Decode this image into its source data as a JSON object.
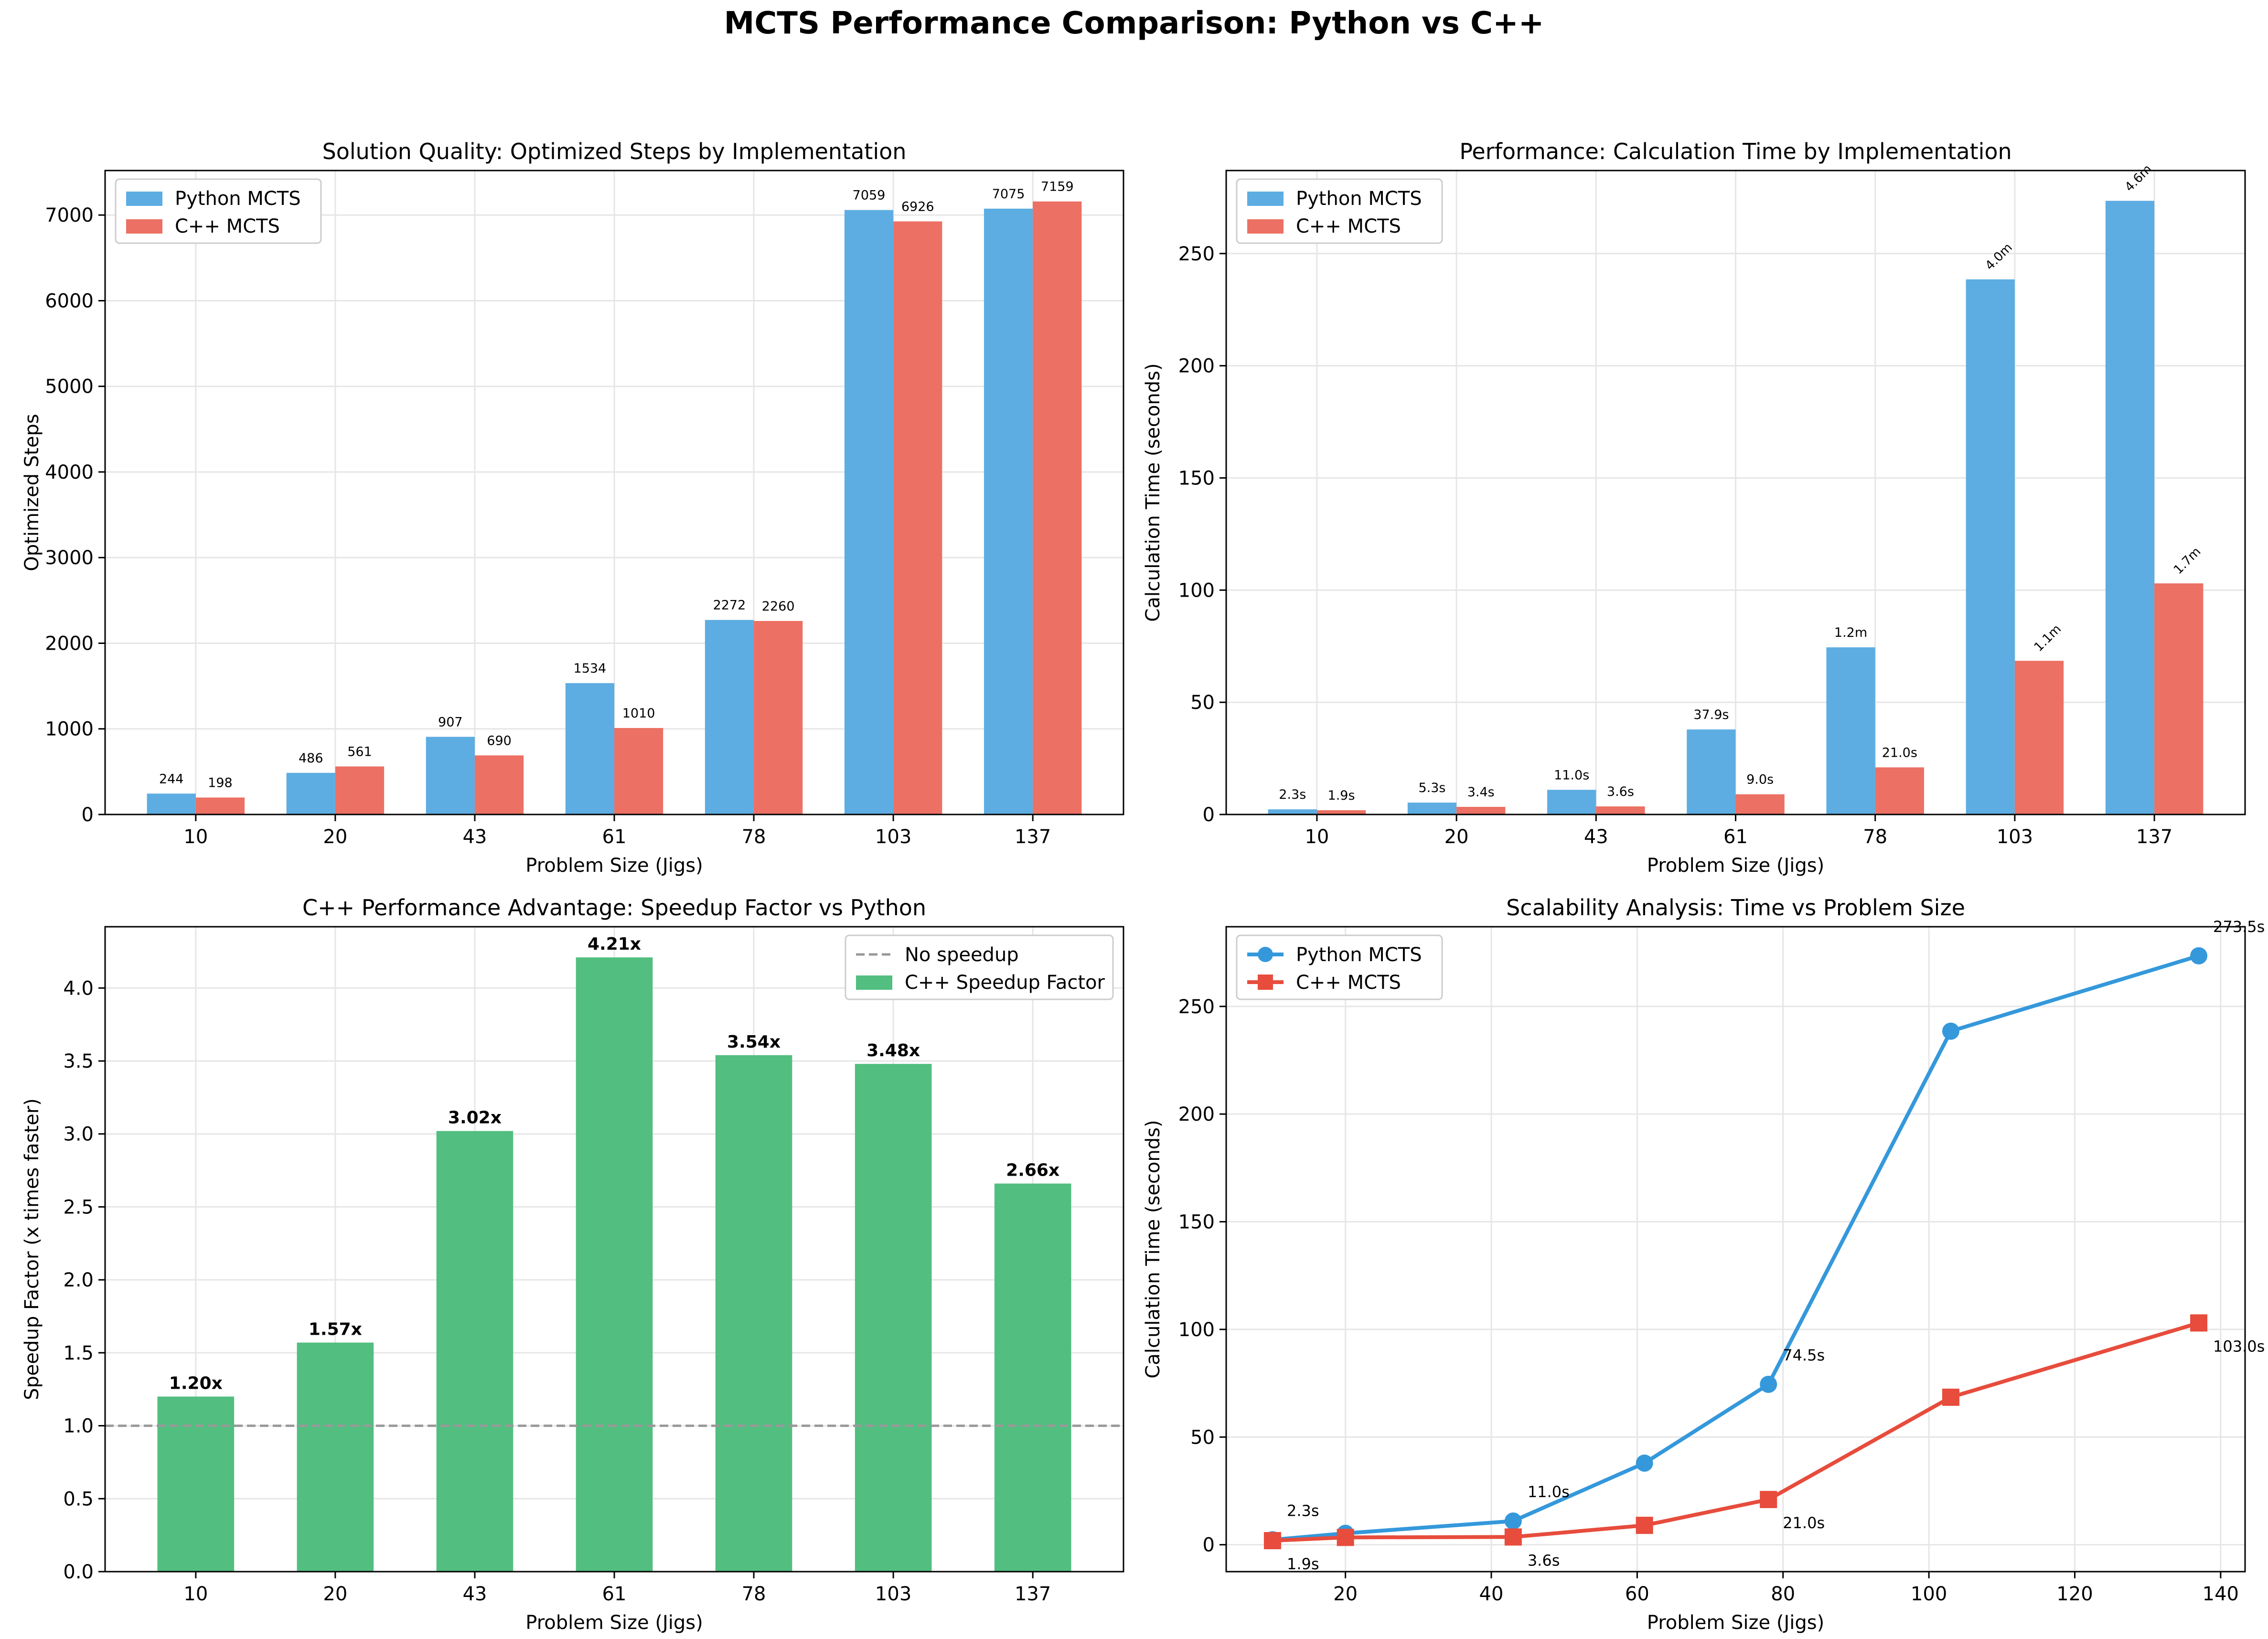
{
  "figure": {
    "suptitle": "MCTS Performance Comparison: Python vs C++"
  },
  "colors": {
    "python": "#5dade2",
    "cpp": "#ec7063",
    "speedup": "#52be80",
    "pyline": "#3498db",
    "cppline": "#e74c3c",
    "ref": "#999999"
  },
  "chart_data": [
    {
      "type": "bar",
      "title": "Solution Quality: Optimized Steps by Implementation",
      "xlabel": "Problem Size (Jigs)",
      "ylabel": "Optimized Steps",
      "categories": [
        "10",
        "20",
        "43",
        "61",
        "78",
        "103",
        "137"
      ],
      "series": [
        {
          "name": "Python MCTS",
          "values": [
            244,
            486,
            907,
            1534,
            2272,
            7059,
            7075
          ],
          "labels": [
            "244",
            "486",
            "907",
            "1534",
            "2272",
            "7059",
            "7075"
          ]
        },
        {
          "name": "C++ MCTS",
          "values": [
            198,
            561,
            690,
            1010,
            2260,
            6926,
            7159
          ],
          "labels": [
            "198",
            "561",
            "690",
            "1010",
            "2260",
            "6926",
            "7159"
          ]
        }
      ],
      "ylim": [
        0,
        7520
      ],
      "yticks": [
        0,
        1000,
        2000,
        3000,
        4000,
        5000,
        6000,
        7000
      ],
      "grid": true,
      "legend": "upper-left"
    },
    {
      "type": "bar",
      "title": "Performance: Calculation Time by Implementation",
      "xlabel": "Problem Size (Jigs)",
      "ylabel": "Calculation Time (seconds)",
      "categories": [
        "10",
        "20",
        "43",
        "61",
        "78",
        "103",
        "137"
      ],
      "series": [
        {
          "name": "Python MCTS",
          "values": [
            2.3,
            5.3,
            11.0,
            37.9,
            74.5,
            238.5,
            273.5
          ],
          "labels": [
            "2.3s",
            "5.3s",
            "11.0s",
            "37.9s",
            "1.2m",
            "4.0m",
            "4.6m"
          ]
        },
        {
          "name": "C++ MCTS",
          "values": [
            1.9,
            3.4,
            3.6,
            9.0,
            21.0,
            68.5,
            103.0
          ],
          "labels": [
            "1.9s",
            "3.4s",
            "3.6s",
            "9.0s",
            "21.0s",
            "1.1m",
            "1.7m"
          ]
        }
      ],
      "ylim": [
        0,
        287
      ],
      "yticks": [
        0,
        50,
        100,
        150,
        200,
        250
      ],
      "grid": true,
      "legend": "upper-left"
    },
    {
      "type": "bar",
      "title": "C++ Performance Advantage: Speedup Factor vs Python",
      "xlabel": "Problem Size (Jigs)",
      "ylabel": "Speedup Factor (x times faster)",
      "categories": [
        "10",
        "20",
        "43",
        "61",
        "78",
        "103",
        "137"
      ],
      "series": [
        {
          "name": "C++ Speedup Factor",
          "values": [
            1.2,
            1.57,
            3.02,
            4.21,
            3.54,
            3.48,
            2.66
          ],
          "labels": [
            "1.20x",
            "1.57x",
            "3.02x",
            "4.21x",
            "3.54x",
            "3.48x",
            "2.66x"
          ]
        }
      ],
      "reference_line": {
        "name": "No speedup",
        "y": 1.0
      },
      "ylim": [
        0,
        4.42
      ],
      "yticks": [
        0.0,
        0.5,
        1.0,
        1.5,
        2.0,
        2.5,
        3.0,
        3.5,
        4.0
      ],
      "grid": true,
      "legend": "upper-right"
    },
    {
      "type": "line",
      "title": "Scalability Analysis: Time vs Problem Size",
      "xlabel": "Problem Size (Jigs)",
      "ylabel": "Calculation Time (seconds)",
      "x": [
        10,
        20,
        43,
        61,
        78,
        103,
        137
      ],
      "series": [
        {
          "name": "Python MCTS",
          "values": [
            2.3,
            5.3,
            11.0,
            37.9,
            74.5,
            238.5,
            273.5
          ],
          "annotations": [
            {
              "x": 10,
              "y": 2.3,
              "text": "2.3s"
            },
            {
              "x": 43,
              "y": 11.0,
              "text": "11.0s"
            },
            {
              "x": 78,
              "y": 74.5,
              "text": "74.5s"
            },
            {
              "x": 137,
              "y": 273.5,
              "text": "273.5s"
            }
          ]
        },
        {
          "name": "C++ MCTS",
          "values": [
            1.9,
            3.4,
            3.6,
            9.0,
            21.0,
            68.5,
            103.0
          ],
          "annotations": [
            {
              "x": 10,
              "y": 1.9,
              "text": "1.9s"
            },
            {
              "x": 43,
              "y": 3.6,
              "text": "3.6s"
            },
            {
              "x": 78,
              "y": 21.0,
              "text": "21.0s"
            },
            {
              "x": 137,
              "y": 103.0,
              "text": "103.0s"
            }
          ]
        }
      ],
      "xlim": [
        3.65,
        143.35
      ],
      "xticks": [
        20,
        40,
        60,
        80,
        100,
        120,
        140
      ],
      "ylim": [
        -12.5,
        287
      ],
      "yticks": [
        0,
        50,
        100,
        150,
        200,
        250
      ],
      "grid": true,
      "legend": "upper-left"
    }
  ]
}
